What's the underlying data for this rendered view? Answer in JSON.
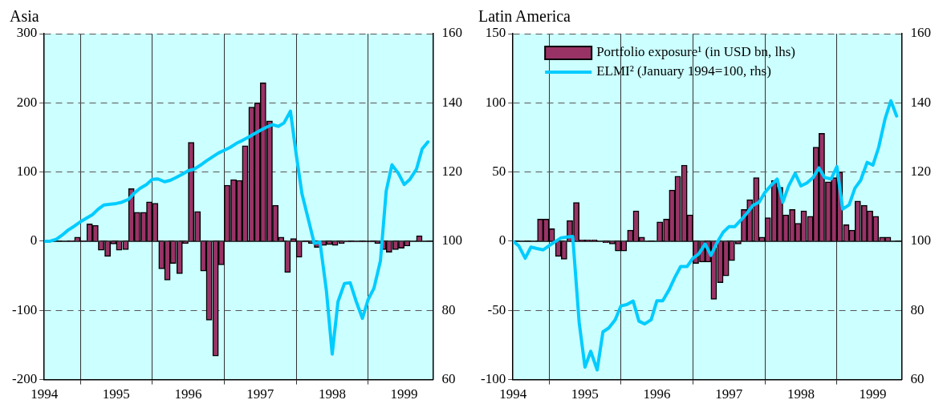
{
  "chart_data": [
    {
      "type": "bar",
      "title": "Asia",
      "xlim": [
        1994,
        1999.4
      ],
      "xticks": [
        1994,
        1995,
        1996,
        1997,
        1998,
        1999
      ],
      "ylim": [
        -200,
        300
      ],
      "yticks": [
        -200,
        -100,
        0,
        100,
        200,
        300
      ],
      "y2lim": [
        60,
        160
      ],
      "y2ticks": [
        60,
        80,
        100,
        120,
        140,
        160
      ],
      "grid": true,
      "series": [
        {
          "color": "#993366",
          "x": [
            1994.38,
            1994.46,
            1994.54,
            1994.63,
            1994.71,
            1994.79,
            1994.88,
            1994.96,
            1995.04,
            1995.13,
            1995.21,
            1995.29,
            1995.38,
            1995.46,
            1995.54,
            1995.63,
            1995.71,
            1995.79,
            1995.88,
            1995.96,
            1996.04,
            1996.13,
            1996.21,
            1996.29,
            1996.38,
            1996.46,
            1996.54,
            1996.63,
            1996.71,
            1996.79,
            1996.88,
            1996.96,
            1997.04,
            1997.13,
            1997.21,
            1997.29,
            1997.38,
            1997.46,
            1997.54,
            1997.63,
            1997.71,
            1997.79,
            1997.88,
            1997.96,
            1998.04,
            1998.13,
            1998.21,
            1998.29,
            1998.38,
            1998.46,
            1998.54,
            1998.63,
            1998.71,
            1998.79,
            1998.88,
            1998.96,
            1999.04,
            1999.13,
            1999.21
          ],
          "values": [
            1,
            6,
            1,
            25,
            23,
            -13,
            -22,
            -4,
            -13,
            -12,
            76,
            42,
            42,
            57,
            55,
            -40,
            -56,
            -32,
            -47,
            -3,
            143,
            43,
            -43,
            -114,
            -166,
            -34,
            81,
            89,
            88,
            138,
            194,
            200,
            229,
            174,
            52,
            6,
            -45,
            4,
            -23,
            -1,
            -3,
            -9,
            -6,
            -5,
            -6,
            -3,
            -1,
            -1,
            -1,
            -1,
            -1,
            -3,
            -12,
            -16,
            -12,
            -10,
            -7,
            0,
            8
          ]
        },
        {
          "type": "line",
          "axis": "y2",
          "color": "#00ccff",
          "x": [
            1994,
            1994.08,
            1994.17,
            1994.25,
            1994.33,
            1994.42,
            1994.5,
            1994.58,
            1994.67,
            1994.75,
            1994.83,
            1994.92,
            1995,
            1995.08,
            1995.17,
            1995.25,
            1995.33,
            1995.42,
            1995.5,
            1995.58,
            1995.67,
            1995.75,
            1995.83,
            1995.92,
            1996,
            1996.08,
            1996.17,
            1996.25,
            1996.33,
            1996.42,
            1996.5,
            1996.58,
            1996.67,
            1996.75,
            1996.83,
            1996.92,
            1997,
            1997.08,
            1997.17,
            1997.25,
            1997.33,
            1997.42,
            1997.5,
            1997.58,
            1997.67,
            1997.75,
            1997.83,
            1997.92,
            1998,
            1998.08,
            1998.17,
            1998.25,
            1998.33,
            1998.42,
            1998.5,
            1998.58,
            1998.67,
            1998.75,
            1998.83,
            1998.92,
            1999,
            1999.08,
            1999.17,
            1999.25,
            1999.33
          ],
          "values": [
            100,
            100,
            100.6,
            101.8,
            103.2,
            104.4,
            105.6,
            106.6,
            107.7,
            109.3,
            110.5,
            110.7,
            110.9,
            111.3,
            112.1,
            113.9,
            115.3,
            116.4,
            117.9,
            118,
            117.2,
            117.6,
            118.4,
            119.4,
            120.4,
            120.8,
            122,
            123.2,
            124.3,
            125.5,
            126.3,
            127.1,
            128.3,
            129.1,
            130,
            131.1,
            132,
            132.9,
            133.7,
            133.2,
            134.2,
            137.6,
            125.1,
            113.7,
            106.2,
            99.4,
            99.8,
            85.6,
            67.4,
            82.5,
            87.8,
            88,
            82.8,
            77.7,
            83.2,
            86.4,
            94.3,
            114.5,
            122.1,
            119.6,
            116.4,
            117.9,
            120.8,
            126.7,
            128.7
          ]
        }
      ]
    },
    {
      "type": "bar",
      "title": "Latin America",
      "xlim": [
        1994,
        1999.4
      ],
      "xticks": [
        1994,
        1995,
        1996,
        1997,
        1998,
        1999
      ],
      "ylim": [
        -100,
        150
      ],
      "yticks": [
        -100,
        -50,
        0,
        50,
        100,
        150
      ],
      "y2lim": [
        60,
        160
      ],
      "y2ticks": [
        60,
        80,
        100,
        120,
        140,
        160
      ],
      "grid": true,
      "legend": "top left",
      "series": [
        {
          "name": "Portfolio exposure¹ (in USD bn, lhs)",
          "color": "#993366",
          "x": [
            1994.38,
            1994.46,
            1994.54,
            1994.63,
            1994.71,
            1994.79,
            1994.88,
            1994.96,
            1995.04,
            1995.13,
            1995.21,
            1995.29,
            1995.38,
            1995.46,
            1995.54,
            1995.63,
            1995.71,
            1995.79,
            1995.88,
            1995.96,
            1996.04,
            1996.13,
            1996.21,
            1996.29,
            1996.38,
            1996.46,
            1996.54,
            1996.63,
            1996.71,
            1996.79,
            1996.88,
            1996.96,
            1997.04,
            1997.13,
            1997.21,
            1997.29,
            1997.38,
            1997.46,
            1997.54,
            1997.63,
            1997.71,
            1997.79,
            1997.88,
            1997.96,
            1998.04,
            1998.13,
            1998.21,
            1998.29,
            1998.38,
            1998.46,
            1998.54,
            1998.63,
            1998.71,
            1998.79,
            1998.88,
            1998.96,
            1999.04,
            1999.13,
            1999.21
          ],
          "values": [
            16,
            16,
            9,
            -11,
            -13,
            15,
            28,
            1,
            1,
            1,
            0,
            -1,
            -2,
            -7,
            -7,
            8,
            22,
            3,
            0,
            0,
            14,
            16,
            37,
            47,
            55,
            19,
            -16,
            -15,
            -15,
            -42,
            -30,
            -25,
            -14,
            -2,
            23,
            30,
            46,
            3,
            17,
            44,
            39,
            19,
            23,
            13,
            22,
            18,
            68,
            78,
            43,
            46,
            50,
            12,
            8,
            29,
            26,
            22,
            18,
            3,
            3
          ]
        },
        {
          "type": "line",
          "axis": "y2",
          "name": "ELMI² (January 1994=100, rhs)",
          "color": "#00ccff",
          "x": [
            1994,
            1994.08,
            1994.17,
            1994.25,
            1994.33,
            1994.42,
            1994.5,
            1994.58,
            1994.67,
            1994.75,
            1994.83,
            1994.92,
            1995,
            1995.08,
            1995.17,
            1995.25,
            1995.33,
            1995.42,
            1995.5,
            1995.58,
            1995.67,
            1995.75,
            1995.83,
            1995.92,
            1996,
            1996.08,
            1996.17,
            1996.25,
            1996.33,
            1996.42,
            1996.5,
            1996.58,
            1996.67,
            1996.75,
            1996.83,
            1996.92,
            1997,
            1997.08,
            1997.17,
            1997.25,
            1997.33,
            1997.42,
            1997.5,
            1997.58,
            1997.67,
            1997.75,
            1997.83,
            1997.92,
            1998,
            1998.08,
            1998.17,
            1998.25,
            1998.33,
            1998.42,
            1998.5,
            1998.58,
            1998.67,
            1998.75,
            1998.83,
            1998.92,
            1999,
            1999.08,
            1999.17,
            1999.25,
            1999.33
          ],
          "values": [
            100,
            98.7,
            95.1,
            98.3,
            97.9,
            97.5,
            98.7,
            99.8,
            101,
            101.2,
            101.4,
            76.5,
            63.6,
            68.2,
            62.8,
            73.8,
            74.9,
            77.3,
            81.3,
            81.7,
            82.7,
            76.9,
            76.1,
            77.3,
            82.8,
            82.8,
            86,
            89.6,
            92.7,
            92.7,
            95.1,
            96.3,
            99.2,
            95.9,
            99.4,
            102.6,
            104.2,
            104.2,
            106.2,
            108.1,
            110.3,
            111.3,
            114.1,
            116,
            118,
            111.3,
            116,
            119.6,
            116,
            116.8,
            118.4,
            121.2,
            118.4,
            118,
            121.6,
            109.3,
            110.5,
            115.3,
            117.6,
            122.8,
            122,
            127.1,
            135.4,
            140.6,
            136.2
          ]
        }
      ]
    }
  ]
}
